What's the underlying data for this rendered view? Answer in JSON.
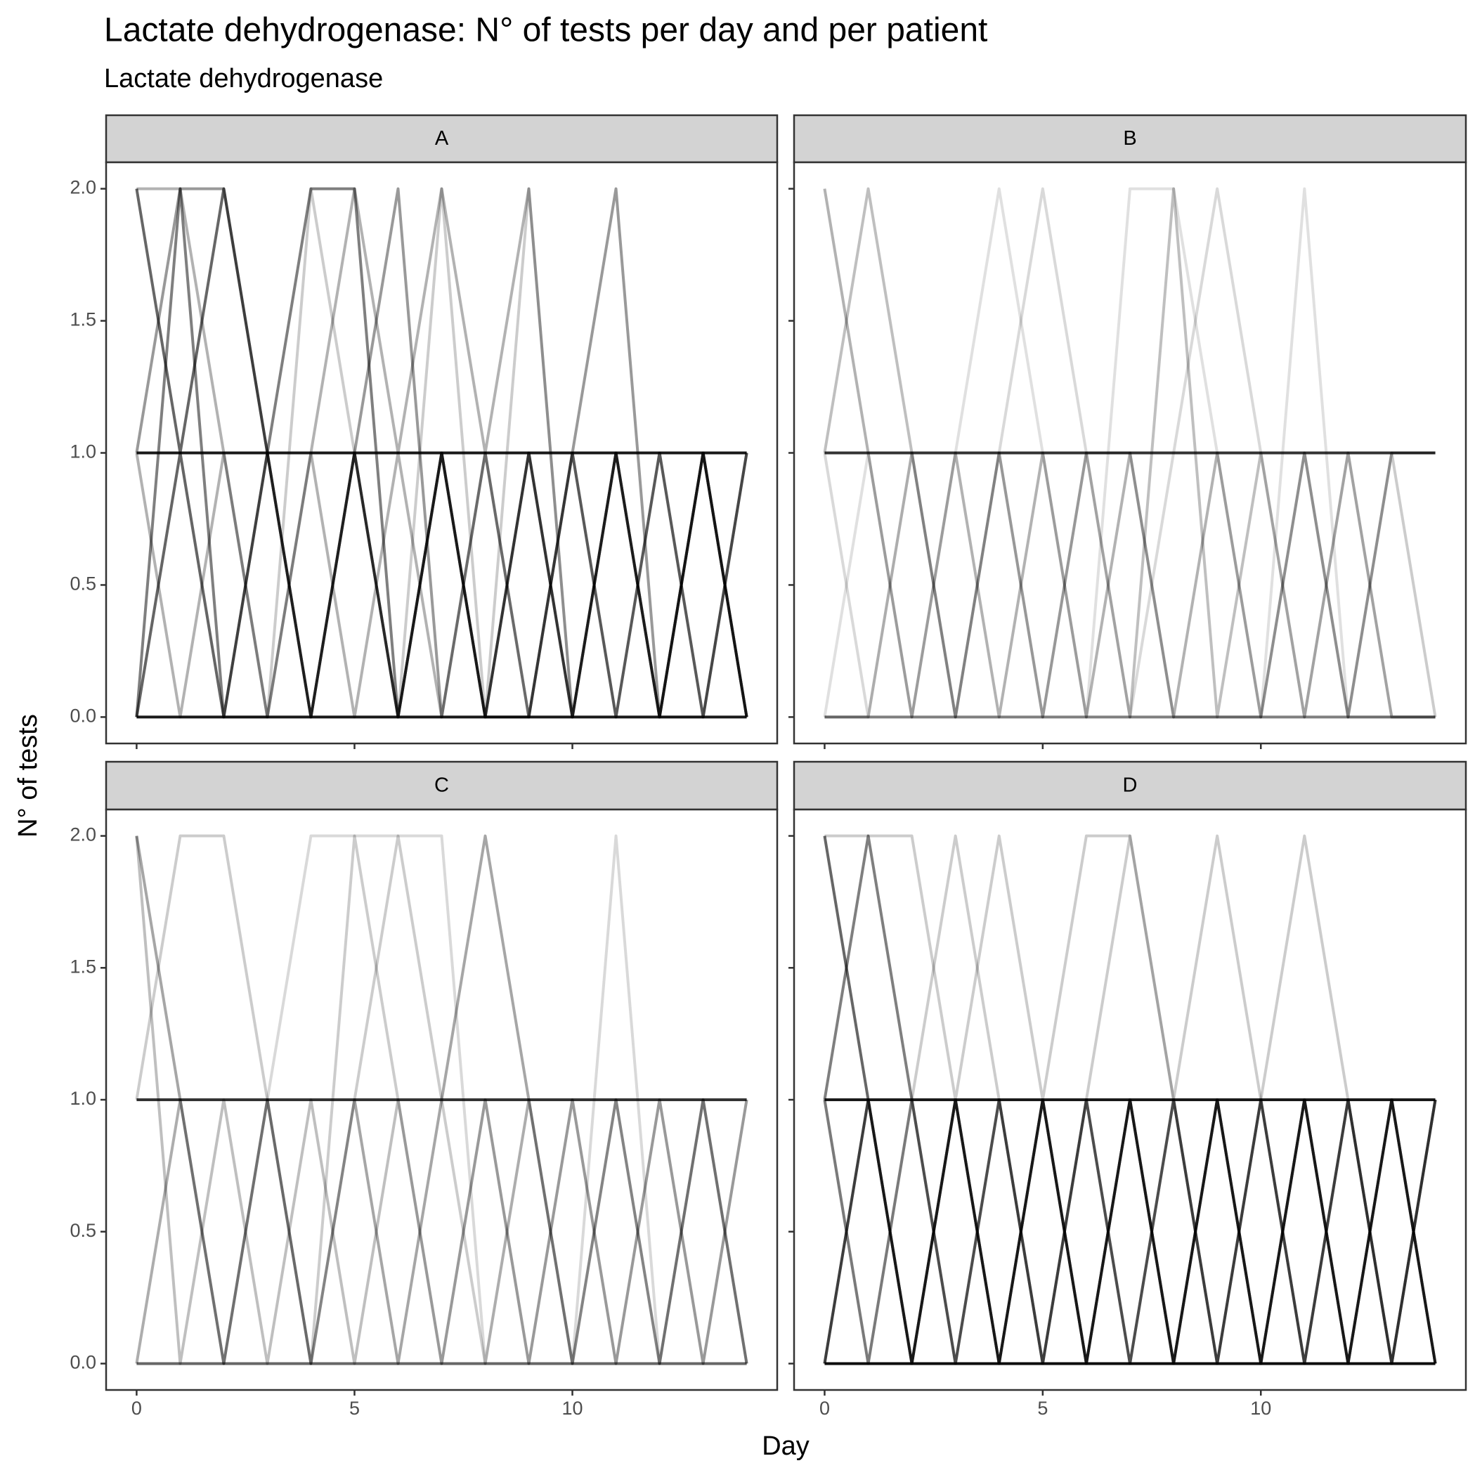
{
  "chart_data": {
    "type": "line",
    "title": "Lactate dehydrogenase: N° of tests per day and per patient",
    "subtitle": "Lactate dehydrogenase",
    "x_label": "Day",
    "y_label": "N° of tests",
    "x": [
      0,
      1,
      2,
      3,
      4,
      5,
      6,
      7,
      8,
      9,
      10,
      11,
      12,
      13,
      14
    ],
    "xlim": [
      -0.7,
      14.7
    ],
    "ylim": [
      -0.1,
      2.1
    ],
    "xticks": [
      0,
      5,
      10
    ],
    "yticks": [
      {
        "value": 0,
        "label": "0.0"
      },
      {
        "value": 0.5,
        "label": "0.5"
      },
      {
        "value": 1,
        "label": "1.0"
      },
      {
        "value": 1.5,
        "label": "1.5"
      },
      {
        "value": 2,
        "label": "2.0"
      }
    ],
    "color": "#000000",
    "facets": [
      {
        "label": "A",
        "series": [
          {
            "opacity": 0.9,
            "values": [
              1,
              1,
              1,
              1,
              1,
              1,
              1,
              1,
              1,
              1,
              1,
              1,
              1,
              1,
              1
            ]
          },
          {
            "opacity": 0.9,
            "values": [
              0,
              0,
              0,
              0,
              0,
              0,
              0,
              0,
              0,
              0,
              0,
              0,
              0,
              0,
              0
            ]
          },
          {
            "opacity": 0.6,
            "values": [
              2,
              1,
              2,
              1,
              0,
              1,
              0,
              1,
              0,
              1,
              0,
              1,
              0,
              1,
              0
            ]
          },
          {
            "opacity": 0.5,
            "values": [
              0,
              2,
              0,
              1,
              2,
              2,
              0,
              1,
              0,
              1,
              0,
              1,
              0,
              1,
              0
            ]
          },
          {
            "opacity": 0.4,
            "values": [
              1,
              2,
              2,
              1,
              0,
              1,
              2,
              0,
              1,
              0,
              1,
              2,
              0,
              1,
              0
            ]
          },
          {
            "opacity": 0.3,
            "values": [
              2,
              2,
              1,
              0,
              1,
              2,
              1,
              2,
              1,
              2,
              0,
              1,
              0,
              1,
              0
            ]
          },
          {
            "opacity": 0.5,
            "values": [
              0,
              1,
              0,
              1,
              0,
              1,
              0,
              1,
              0,
              0,
              1,
              0,
              1,
              0,
              1
            ]
          },
          {
            "opacity": 0.3,
            "values": [
              1,
              0,
              1,
              0,
              1,
              0,
              1,
              0,
              1,
              0,
              1,
              0,
              1,
              0,
              1
            ]
          },
          {
            "opacity": 0.2,
            "values": [
              0,
              1,
              0,
              0,
              2,
              1,
              0,
              2,
              0,
              2,
              0,
              1,
              0,
              0,
              1
            ]
          }
        ]
      },
      {
        "label": "B",
        "series": [
          {
            "opacity": 0.8,
            "values": [
              1,
              1,
              1,
              1,
              1,
              1,
              1,
              1,
              1,
              1,
              1,
              1,
              1,
              1,
              1
            ]
          },
          {
            "opacity": 0.5,
            "values": [
              0,
              0,
              0,
              0,
              0,
              0,
              0,
              0,
              0,
              0,
              0,
              0,
              0,
              0,
              0
            ]
          },
          {
            "opacity": 0.3,
            "values": [
              2,
              1,
              0,
              1,
              0,
              1,
              0,
              1,
              0,
              1,
              0,
              1,
              0,
              1,
              1
            ]
          },
          {
            "opacity": 0.25,
            "values": [
              1,
              2,
              1,
              0,
              1,
              0,
              1,
              0,
              2,
              0,
              1,
              0,
              1,
              0,
              0
            ]
          },
          {
            "opacity": 0.12,
            "values": [
              0,
              1,
              0,
              1,
              2,
              1,
              0,
              2,
              2,
              1,
              0,
              2,
              0,
              0,
              0
            ]
          },
          {
            "opacity": 0.15,
            "values": [
              1,
              0,
              1,
              0,
              1,
              2,
              1,
              0,
              1,
              2,
              1,
              0,
              1,
              0,
              0
            ]
          },
          {
            "opacity": 0.2,
            "values": [
              0,
              0,
              1,
              0,
              1,
              0,
              1,
              1,
              0,
              0,
              0,
              1,
              0,
              1,
              0
            ]
          }
        ]
      },
      {
        "label": "C",
        "series": [
          {
            "opacity": 0.8,
            "values": [
              1,
              1,
              1,
              1,
              1,
              1,
              1,
              1,
              1,
              1,
              1,
              1,
              1,
              1,
              1
            ]
          },
          {
            "opacity": 0.6,
            "values": [
              0,
              0,
              0,
              0,
              0,
              0,
              0,
              0,
              0,
              0,
              0,
              0,
              0,
              0,
              0
            ]
          },
          {
            "opacity": 0.35,
            "values": [
              2,
              1,
              0,
              1,
              0,
              1,
              0,
              1,
              2,
              1,
              0,
              1,
              0,
              1,
              0
            ]
          },
          {
            "opacity": 0.2,
            "values": [
              1,
              2,
              2,
              1,
              0,
              2,
              1,
              0,
              1,
              0,
              1,
              0,
              1,
              0,
              1
            ]
          },
          {
            "opacity": 0.15,
            "values": [
              0,
              1,
              0,
              1,
              2,
              2,
              2,
              2,
              0,
              1,
              0,
              2,
              0,
              1,
              0
            ]
          },
          {
            "opacity": 0.25,
            "values": [
              2,
              0,
              1,
              0,
              1,
              0,
              1,
              0,
              1,
              0,
              1,
              0,
              1,
              0,
              1
            ]
          },
          {
            "opacity": 0.2,
            "values": [
              0,
              1,
              0,
              1,
              0,
              1,
              2,
              1,
              0,
              1,
              0,
              1,
              0,
              1,
              0
            ]
          }
        ]
      },
      {
        "label": "D",
        "series": [
          {
            "opacity": 0.9,
            "values": [
              1,
              1,
              1,
              1,
              1,
              1,
              1,
              1,
              1,
              1,
              1,
              1,
              1,
              1,
              1
            ]
          },
          {
            "opacity": 0.95,
            "values": [
              0,
              0,
              0,
              0,
              0,
              0,
              0,
              0,
              0,
              0,
              0,
              0,
              0,
              0,
              0
            ]
          },
          {
            "opacity": 0.6,
            "values": [
              2,
              1,
              0,
              1,
              0,
              1,
              0,
              1,
              0,
              1,
              0,
              1,
              0,
              1,
              0
            ]
          },
          {
            "opacity": 0.6,
            "values": [
              0,
              1,
              0,
              1,
              0,
              1,
              0,
              1,
              0,
              1,
              0,
              1,
              0,
              1,
              0
            ]
          },
          {
            "opacity": 0.5,
            "values": [
              1,
              2,
              1,
              0,
              1,
              0,
              1,
              0,
              1,
              0,
              1,
              0,
              1,
              0,
              1
            ]
          },
          {
            "opacity": 0.2,
            "values": [
              2,
              2,
              2,
              1,
              2,
              1,
              2,
              2,
              1,
              2,
              1,
              0,
              1,
              0,
              1
            ]
          },
          {
            "opacity": 0.2,
            "values": [
              1,
              0,
              1,
              2,
              1,
              0,
              1,
              2,
              1,
              0,
              1,
              2,
              1,
              0,
              1
            ]
          },
          {
            "opacity": 0.4,
            "values": [
              0,
              1,
              0,
              1,
              0,
              1,
              0,
              1,
              0,
              1,
              0,
              1,
              0,
              1,
              0
            ]
          },
          {
            "opacity": 0.4,
            "values": [
              1,
              0,
              1,
              0,
              1,
              0,
              1,
              0,
              1,
              0,
              1,
              0,
              1,
              0,
              1
            ]
          }
        ]
      }
    ]
  }
}
